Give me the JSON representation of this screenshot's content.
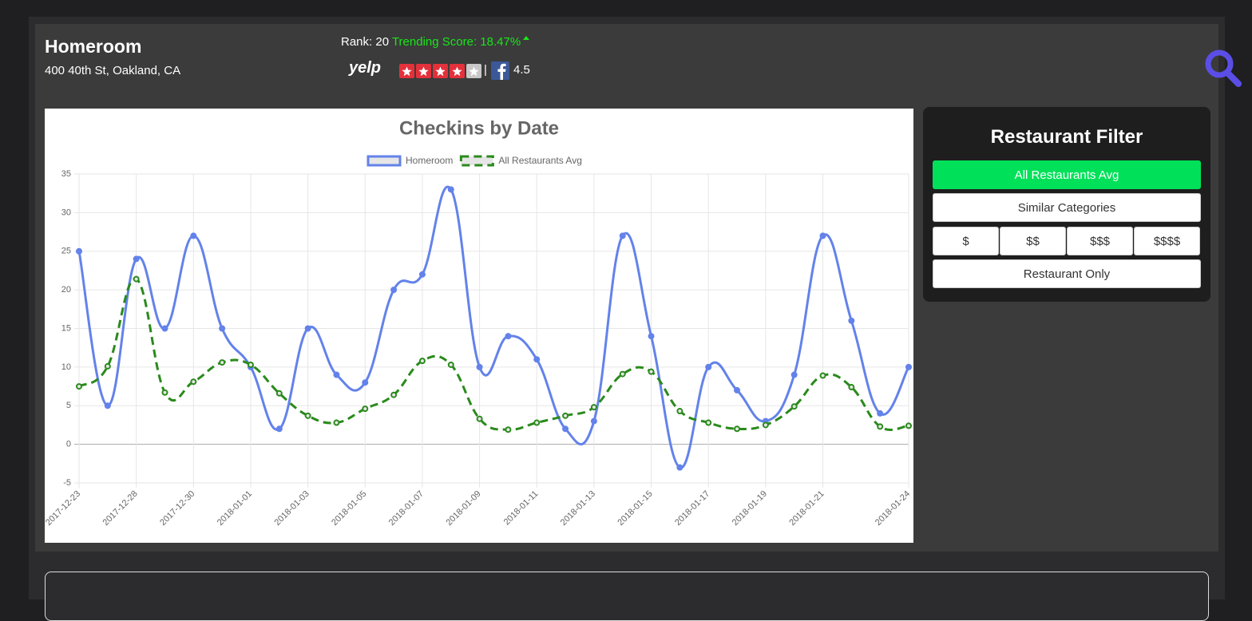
{
  "header": {
    "name": "Homeroom",
    "address": "400 40th St, Oakland, CA",
    "rank_label": "Rank:",
    "rank": 20,
    "trending_label": "Trending Score:",
    "trending": "18.47%",
    "yelp_logo": "yelp",
    "yelp_rating": 4,
    "yelp_max": 5,
    "separator": "|",
    "facebook_rating": 4.5
  },
  "filter": {
    "title": "Restaurant Filter",
    "buttons": [
      "All Restaurants Avg",
      "Similar Categories"
    ],
    "price_buttons": [
      "$",
      "$$",
      "$$$",
      "$$$$"
    ],
    "last_button": "Restaurant Only",
    "active": "All Restaurants Avg"
  },
  "chart_data": {
    "type": "line",
    "title": "Checkins by Date",
    "categories": [
      "2017-12-23",
      null,
      "2017-12-28",
      null,
      "2017-12-30",
      null,
      "2018-01-01",
      null,
      "2018-01-03",
      null,
      "2018-01-05",
      null,
      "2018-01-07",
      null,
      "2018-01-09",
      null,
      "2018-01-11",
      null,
      "2018-01-13",
      null,
      "2018-01-15",
      null,
      "2018-01-17",
      null,
      "2018-01-19",
      null,
      "2018-01-21",
      null,
      null,
      "2018-01-24"
    ],
    "series": [
      {
        "name": "Homeroom",
        "color": "#6382ea",
        "dashed": false,
        "values": [
          25,
          5,
          24,
          15,
          27,
          15,
          10,
          2,
          15,
          9,
          8,
          20,
          22,
          33,
          10,
          14,
          11,
          2,
          3,
          27,
          14,
          -3,
          10,
          7,
          3,
          9,
          27,
          16,
          4,
          10
        ]
      },
      {
        "name": "All Restaurants Avg",
        "color": "#2a8a1c",
        "dashed": true,
        "values": [
          7.5,
          10.1,
          21.4,
          6.7,
          8.1,
          10.6,
          10.3,
          6.6,
          3.7,
          2.8,
          4.6,
          6.4,
          10.8,
          10.3,
          3.3,
          1.9,
          2.8,
          3.7,
          4.8,
          9.1,
          9.4,
          4.3,
          2.8,
          2.0,
          2.5,
          4.9,
          8.9,
          7.4,
          2.3,
          2.4
        ]
      }
    ],
    "ylim": [
      -5,
      35
    ],
    "yticks": [
      -5,
      0,
      5,
      10,
      15,
      20,
      25,
      30,
      35
    ],
    "grid": true,
    "legend": "top"
  }
}
